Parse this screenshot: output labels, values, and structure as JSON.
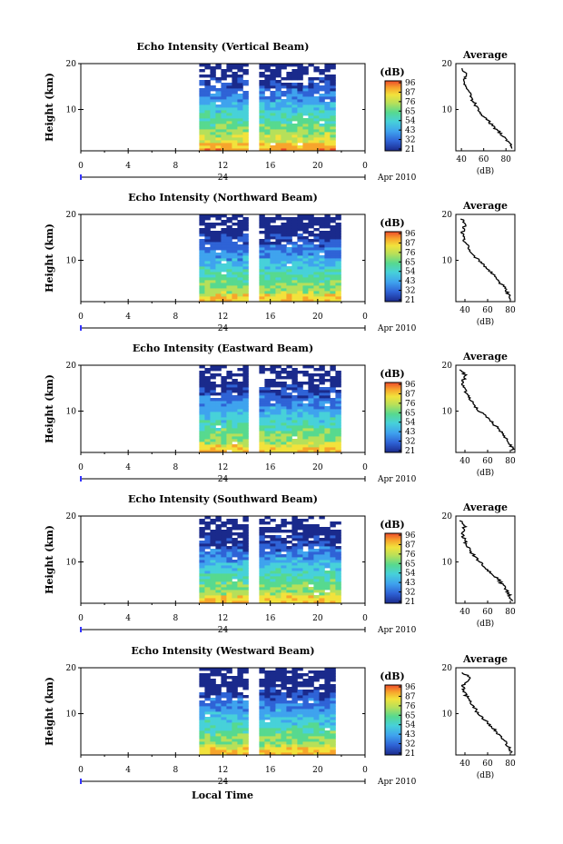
{
  "colorbar": {
    "unit": "(dB)",
    "stops": [
      "#1a2a8c",
      "#2f63d6",
      "#3fa3ee",
      "#47d1d9",
      "#57d98f",
      "#b6e05a",
      "#f2e23c",
      "#f7a52c",
      "#ee4a2a"
    ]
  },
  "date_label": "Apr 2010",
  "day_label": "24",
  "xlabel": "Local Time",
  "ylabel": "Height (km)",
  "xticks": [
    "0",
    "4",
    "8",
    "12",
    "16",
    "20",
    "0"
  ],
  "yticks": [
    "20",
    "10"
  ],
  "avg": {
    "title": "Average",
    "xlabel": "(dB)"
  },
  "chart_data": [
    {
      "type": "heatmap",
      "title": "Echo Intensity (Vertical Beam)",
      "xlim": [
        0,
        24
      ],
      "ylim": [
        1,
        20
      ],
      "data_hours": [
        10,
        21.5
      ],
      "gap_hours": [
        14.2,
        14.7
      ],
      "colorbar_ticks": [
        "96",
        "87",
        "76",
        "65",
        "54",
        "43",
        "32",
        "21"
      ],
      "profile": {
        "x_ticks": [
          "40",
          "60",
          "80"
        ],
        "xlim": [
          35,
          88
        ],
        "heights": [
          2,
          4,
          6,
          8,
          10,
          12,
          14,
          16,
          18,
          19
        ],
        "values": [
          85,
          78,
          70,
          62,
          55,
          50,
          46,
          42,
          44,
          41
        ]
      }
    },
    {
      "type": "heatmap",
      "title": "Echo Intensity (Northward Beam)",
      "xlim": [
        0,
        24
      ],
      "ylim": [
        1,
        20
      ],
      "data_hours": [
        10,
        21.8
      ],
      "gap_hours": [
        14.2,
        14.7
      ],
      "colorbar_ticks": [
        "96",
        "87",
        "76",
        "65",
        "54",
        "43",
        "32",
        "21"
      ],
      "profile": {
        "x_ticks": [
          "40",
          "60",
          "80"
        ],
        "xlim": [
          32,
          84
        ],
        "heights": [
          2,
          4,
          6,
          8,
          10,
          12,
          14,
          16,
          18,
          19
        ],
        "values": [
          80,
          75,
          68,
          60,
          52,
          45,
          40,
          38,
          40,
          37
        ]
      }
    },
    {
      "type": "heatmap",
      "title": "Echo Intensity (Eastward Beam)",
      "xlim": [
        0,
        24
      ],
      "ylim": [
        1,
        20
      ],
      "data_hours": [
        10,
        21.8
      ],
      "gap_hours": [
        14.2,
        14.7
      ],
      "colorbar_ticks": [
        "96",
        "87",
        "76",
        "65",
        "54",
        "43",
        "32",
        "21"
      ],
      "profile": {
        "x_ticks": [
          "40",
          "60",
          "80"
        ],
        "xlim": [
          32,
          84
        ],
        "heights": [
          2,
          4,
          6,
          8,
          10,
          12,
          14,
          16,
          18,
          19
        ],
        "values": [
          82,
          76,
          70,
          62,
          53,
          46,
          41,
          38,
          40,
          36
        ]
      }
    },
    {
      "type": "heatmap",
      "title": "Echo Intensity (Southward Beam)",
      "xlim": [
        0,
        24
      ],
      "ylim": [
        1,
        20
      ],
      "data_hours": [
        10,
        21.8
      ],
      "gap_hours": [
        14.2,
        14.7
      ],
      "colorbar_ticks": [
        "96",
        "87",
        "76",
        "65",
        "54",
        "43",
        "32",
        "21"
      ],
      "profile": {
        "x_ticks": [
          "40",
          "60",
          "80"
        ],
        "xlim": [
          32,
          84
        ],
        "heights": [
          2,
          4,
          6,
          8,
          10,
          12,
          14,
          16,
          18,
          19
        ],
        "values": [
          81,
          76,
          70,
          61,
          53,
          46,
          41,
          38,
          40,
          36
        ]
      }
    },
    {
      "type": "heatmap",
      "title": "Echo Intensity (Westward Beam)",
      "xlim": [
        0,
        24
      ],
      "ylim": [
        1,
        20
      ],
      "data_hours": [
        10,
        21.5
      ],
      "gap_hours": [
        14.2,
        14.7
      ],
      "colorbar_ticks": [
        "96",
        "87",
        "76",
        "65",
        "54",
        "43",
        "32",
        "21"
      ],
      "profile": {
        "x_ticks": [
          "40",
          "60",
          "80"
        ],
        "xlim": [
          32,
          84
        ],
        "heights": [
          2,
          4,
          6,
          8,
          10,
          12,
          14,
          16,
          18,
          19
        ],
        "values": [
          80,
          75,
          68,
          60,
          52,
          46,
          41,
          38,
          45,
          37
        ]
      }
    }
  ]
}
